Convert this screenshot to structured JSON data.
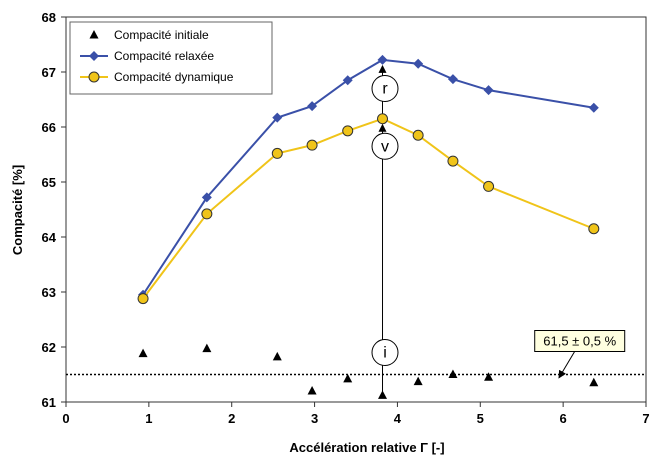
{
  "chart_data": {
    "type": "line",
    "xlabel": "Accélération relative Γ [-]",
    "ylabel": "Compacité [%]",
    "xlim": [
      0,
      7
    ],
    "ylim": [
      61,
      68
    ],
    "x_ticks": [
      "0",
      "1",
      "2",
      "3",
      "4",
      "5",
      "6",
      "7"
    ],
    "y_ticks": [
      "61",
      "62",
      "63",
      "64",
      "65",
      "66",
      "67",
      "68"
    ],
    "grid": false,
    "legend_position": "top-left",
    "series": [
      {
        "name": "Compacité initiale",
        "marker": "triangle",
        "color": "#000000",
        "line": false,
        "points": [
          [
            0.93,
            61.88
          ],
          [
            1.7,
            61.97
          ],
          [
            2.55,
            61.82
          ],
          [
            2.97,
            61.2
          ],
          [
            3.4,
            61.42
          ],
          [
            3.82,
            61.12
          ],
          [
            4.25,
            61.37
          ],
          [
            4.67,
            61.5
          ],
          [
            5.1,
            61.45
          ],
          [
            6.37,
            61.35
          ]
        ]
      },
      {
        "name": "Compacité relaxée",
        "marker": "diamond",
        "color": "#3a50a8",
        "line": true,
        "points": [
          [
            0.93,
            62.95
          ],
          [
            1.7,
            64.72
          ],
          [
            2.55,
            66.17
          ],
          [
            2.97,
            66.38
          ],
          [
            3.4,
            66.85
          ],
          [
            3.82,
            67.22
          ],
          [
            4.25,
            67.15
          ],
          [
            4.67,
            66.87
          ],
          [
            5.1,
            66.67
          ],
          [
            6.37,
            66.35
          ]
        ]
      },
      {
        "name": "Compacité dynamique",
        "marker": "circle",
        "color": "#f0c419",
        "line": true,
        "points": [
          [
            0.93,
            62.88
          ],
          [
            1.7,
            64.42
          ],
          [
            2.55,
            65.52
          ],
          [
            2.97,
            65.67
          ],
          [
            3.4,
            65.93
          ],
          [
            3.82,
            66.15
          ],
          [
            4.25,
            65.85
          ],
          [
            4.67,
            65.38
          ],
          [
            5.1,
            64.92
          ],
          [
            6.37,
            64.15
          ]
        ]
      }
    ],
    "reference_line": {
      "y": 61.5,
      "style": "dotted"
    },
    "annotations": [
      {
        "text": "r",
        "x": 3.85,
        "y": 66.7
      },
      {
        "text": "v",
        "x": 3.85,
        "y": 65.65
      },
      {
        "text": "i",
        "x": 3.85,
        "y": 61.9
      },
      {
        "text": "61,5  ± 0,5 %",
        "x": 6.2,
        "y": 62.1
      }
    ],
    "arrows": [
      {
        "from": [
          3.82,
          61.12
        ],
        "to": [
          3.82,
          66.15
        ]
      },
      {
        "from": [
          3.82,
          66.15
        ],
        "to": [
          3.82,
          67.22
        ]
      },
      {
        "from": [
          6.2,
          62.0
        ],
        "to": [
          5.95,
          61.55
        ]
      }
    ]
  }
}
